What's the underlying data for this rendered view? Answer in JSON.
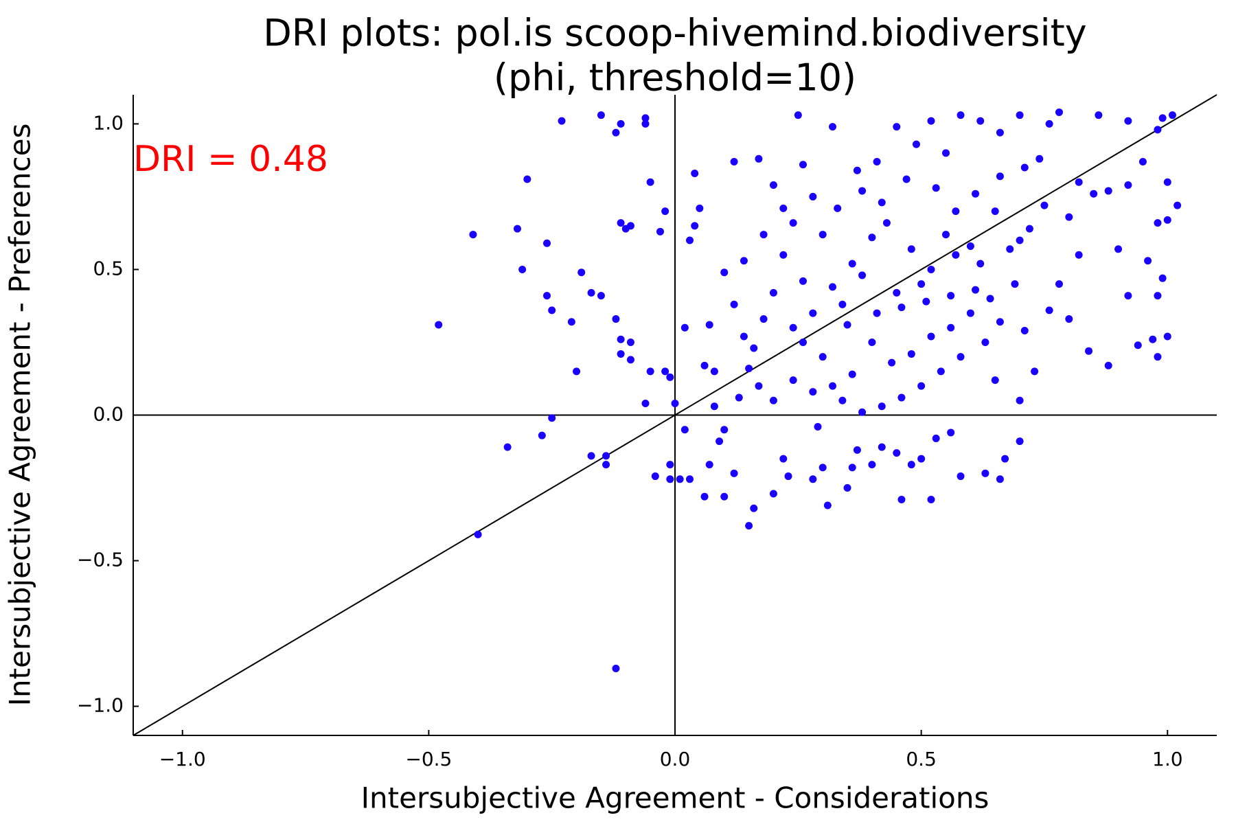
{
  "chart_data": {
    "type": "scatter",
    "title": [
      "DRI plots: pol.is scoop-hivemind.biodiversity",
      "(phi, threshold=10)"
    ],
    "xlabel": "Intersubjective Agreement - Considerations",
    "ylabel": "Intersubjective Agreement - Preferences",
    "annotation": {
      "text": "DRI = 0.48",
      "color": "#ff0000"
    },
    "color": "#1a00ff",
    "xlim": [
      -1.1,
      1.1
    ],
    "ylim": [
      -1.1,
      1.1
    ],
    "xticks": [
      {
        "value": -1,
        "label": "−1.0"
      },
      {
        "value": -0.5,
        "label": "−0.5"
      },
      {
        "value": 0,
        "label": "0.0"
      },
      0.5,
      {
        "value": 1,
        "label": "1.0"
      }
    ],
    "yticks": [
      {
        "value": -1,
        "label": "−1.0"
      },
      {
        "value": -0.5,
        "label": "−0.5"
      },
      {
        "value": 0,
        "label": "0.0"
      },
      0.5,
      {
        "value": 1,
        "label": "1.0"
      }
    ],
    "x": [
      -0.48,
      -0.41,
      -0.4,
      -0.12,
      -0.3,
      -0.32,
      -0.31,
      -0.23,
      -0.15,
      -0.34,
      -0.27,
      -0.25,
      -0.17,
      -0.14,
      -0.14,
      -0.2,
      -0.26,
      -0.25,
      -0.21,
      -0.26,
      -0.12,
      -0.11,
      -0.06,
      -0.06,
      -0.05,
      -0.11,
      -0.1,
      -0.09,
      -0.03,
      -0.19,
      -0.17,
      -0.15,
      -0.12,
      -0.11,
      -0.09,
      -0.11,
      -0.09,
      -0.05,
      -0.02,
      -0.06,
      -0.04,
      -0.01,
      -0.01,
      0.01,
      0.03,
      0.02,
      -0.01,
      0.0,
      0.02,
      0.04,
      0.03,
      0.05,
      0.04,
      -0.02,
      0.07,
      0.06,
      0.08,
      0.08,
      0.1,
      0.09,
      0.07,
      0.06,
      0.1,
      0.12,
      0.15,
      0.16,
      0.2,
      0.22,
      0.23,
      0.28,
      0.31,
      0.3,
      0.35,
      0.37,
      0.4,
      0.42,
      0.45,
      0.48,
      0.5,
      0.53,
      0.56,
      0.63,
      0.66,
      0.7,
      0.67,
      0.58,
      0.46,
      0.52,
      0.36,
      0.29,
      0.12,
      0.17,
      0.2,
      0.22,
      0.26,
      0.25,
      0.32,
      0.37,
      0.41,
      0.45,
      0.49,
      0.52,
      0.55,
      0.58,
      0.62,
      0.66,
      0.7,
      0.76,
      0.78,
      0.86,
      0.92,
      0.98,
      0.99,
      1.01,
      1.0,
      1.02,
      0.98,
      1.0,
      0.99,
      0.98,
      0.97,
      0.98,
      1.0,
      0.94,
      0.88,
      0.84,
      0.8,
      0.76,
      0.73,
      0.78,
      0.82,
      0.9,
      0.92,
      0.96,
      0.92,
      0.95,
      0.88,
      0.85,
      0.82,
      0.8,
      0.75,
      0.72,
      0.7,
      0.68,
      0.65,
      0.62,
      0.6,
      0.57,
      0.55,
      0.52,
      0.5,
      0.48,
      0.45,
      0.43,
      0.4,
      0.38,
      0.36,
      0.34,
      0.32,
      0.3,
      0.28,
      0.26,
      0.24,
      0.22,
      0.2,
      0.18,
      0.16,
      0.14,
      0.12,
      0.1,
      0.14,
      0.18,
      0.24,
      0.28,
      0.33,
      0.38,
      0.42,
      0.47,
      0.53,
      0.57,
      0.61,
      0.66,
      0.71,
      0.74,
      0.69,
      0.64,
      0.6,
      0.56,
      0.52,
      0.48,
      0.44,
      0.4,
      0.36,
      0.32,
      0.28,
      0.24,
      0.2,
      0.17,
      0.13,
      0.15,
      0.35,
      0.41,
      0.46,
      0.51,
      0.56,
      0.61,
      0.66,
      0.71,
      0.63,
      0.58,
      0.54,
      0.5,
      0.46,
      0.42,
      0.38,
      0.34,
      0.3,
      0.26,
      0.65,
      0.7
    ],
    "values": [
      0.31,
      0.62,
      -0.41,
      -0.87,
      0.81,
      0.64,
      0.5,
      1.01,
      1.03,
      -0.11,
      -0.07,
      -0.01,
      -0.14,
      -0.17,
      -0.14,
      0.15,
      0.41,
      0.36,
      0.32,
      0.59,
      0.97,
      1.0,
      1.0,
      1.02,
      0.8,
      0.66,
      0.64,
      0.65,
      0.63,
      0.49,
      0.42,
      0.41,
      0.33,
      0.26,
      0.25,
      0.21,
      0.19,
      0.15,
      0.15,
      0.04,
      -0.21,
      -0.17,
      -0.22,
      -0.22,
      -0.22,
      -0.05,
      0.13,
      0.04,
      0.3,
      0.83,
      0.6,
      0.71,
      0.65,
      0.7,
      0.31,
      0.17,
      0.15,
      0.03,
      -0.05,
      -0.09,
      -0.17,
      -0.28,
      -0.28,
      -0.2,
      -0.38,
      -0.32,
      -0.27,
      -0.15,
      -0.21,
      -0.22,
      -0.31,
      -0.18,
      -0.25,
      -0.12,
      -0.17,
      -0.11,
      -0.13,
      -0.17,
      -0.15,
      -0.08,
      -0.06,
      -0.2,
      -0.22,
      -0.09,
      -0.15,
      -0.21,
      -0.29,
      -0.29,
      -0.18,
      -0.04,
      0.87,
      0.88,
      0.79,
      0.71,
      0.86,
      1.03,
      0.99,
      0.84,
      0.87,
      0.99,
      0.93,
      1.01,
      0.9,
      1.03,
      1.01,
      0.97,
      1.03,
      1.0,
      1.04,
      1.03,
      1.01,
      0.98,
      1.02,
      1.03,
      0.8,
      0.72,
      0.66,
      0.67,
      0.47,
      0.41,
      0.26,
      0.2,
      0.27,
      0.24,
      0.17,
      0.22,
      0.33,
      0.36,
      0.15,
      0.45,
      0.55,
      0.57,
      0.41,
      0.53,
      0.79,
      0.87,
      0.77,
      0.76,
      0.8,
      0.68,
      0.72,
      0.64,
      0.6,
      0.57,
      0.7,
      0.52,
      0.58,
      0.55,
      0.62,
      0.5,
      0.45,
      0.57,
      0.42,
      0.66,
      0.61,
      0.48,
      0.52,
      0.38,
      0.44,
      0.62,
      0.35,
      0.46,
      0.3,
      0.55,
      0.42,
      0.33,
      0.23,
      0.27,
      0.38,
      0.49,
      0.53,
      0.62,
      0.66,
      0.75,
      0.71,
      0.77,
      0.73,
      0.81,
      0.78,
      0.7,
      0.76,
      0.82,
      0.85,
      0.88,
      0.45,
      0.4,
      0.35,
      0.3,
      0.27,
      0.21,
      0.18,
      0.25,
      0.14,
      0.1,
      0.08,
      0.12,
      0.05,
      0.1,
      0.06,
      0.16,
      0.31,
      0.35,
      0.37,
      0.39,
      0.41,
      0.43,
      0.32,
      0.29,
      0.25,
      0.2,
      0.15,
      0.1,
      0.06,
      0.03,
      0.01,
      0.05,
      0.2,
      0.25,
      0.12,
      0.05
    ]
  }
}
